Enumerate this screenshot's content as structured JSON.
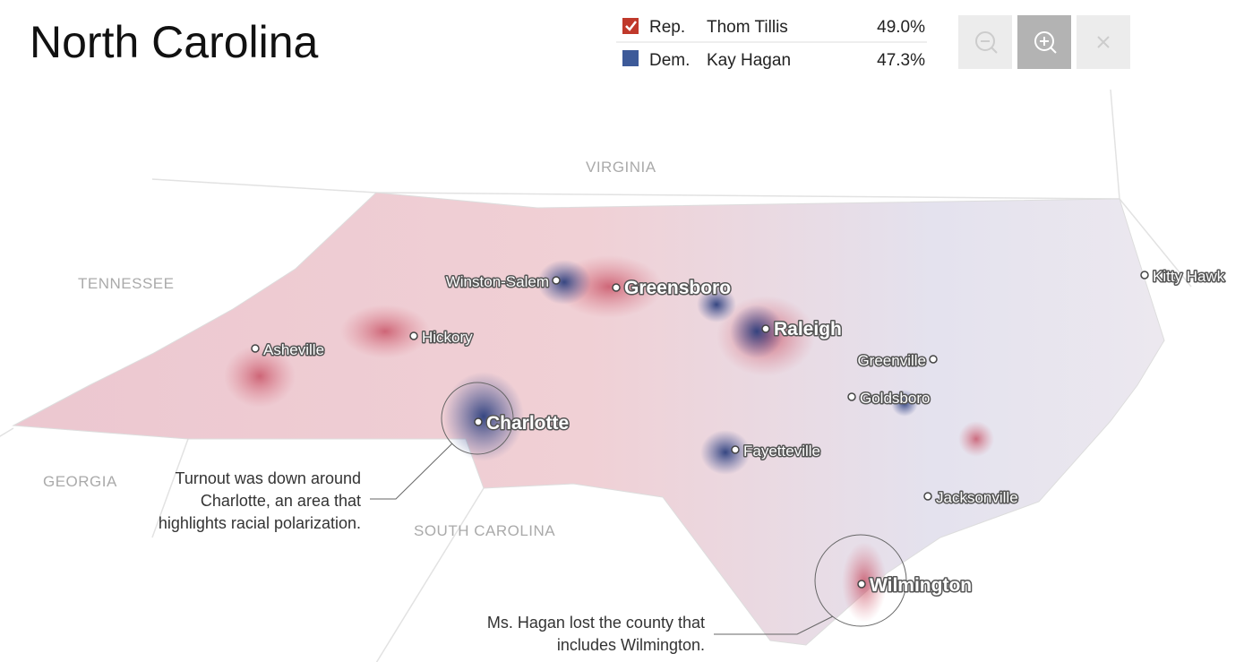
{
  "header": {
    "title": "North Carolina"
  },
  "legend": [
    {
      "party": "Rep.",
      "candidate": "Thom Tillis",
      "percent": "49.0%"
    },
    {
      "party": "Dem.",
      "candidate": "Kay Hagan",
      "percent": "47.3%"
    }
  ],
  "states": [
    "VIRGINIA",
    "TENNESSEE",
    "GEORGIA",
    "SOUTH CAROLINA"
  ],
  "cities": [
    "Winston-Salem",
    "Greensboro",
    "Raleigh",
    "Hickory",
    "Asheville",
    "Charlotte",
    "Greenville",
    "Goldsboro",
    "Fayetteville",
    "Jacksonville",
    "Wilmington",
    "Kitty Hawk"
  ],
  "annotations": [
    {
      "lines": [
        "Turnout was down around",
        "Charlotte, an area that",
        "highlights racial polarization."
      ]
    },
    {
      "lines": [
        "Ms. Hagan lost the county that",
        "includes Wilmington."
      ]
    }
  ]
}
